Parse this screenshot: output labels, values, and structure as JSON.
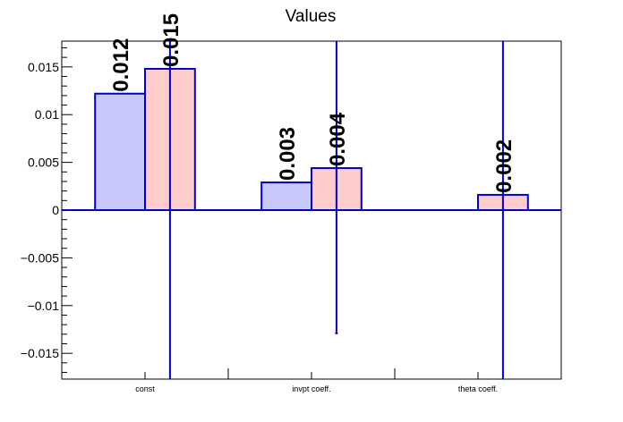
{
  "chart_data": {
    "type": "bar",
    "title": "Values",
    "xlabel": "",
    "ylabel": "",
    "categories": [
      "const",
      "invpt coeff.",
      "theta coeff."
    ],
    "ylim": [
      -0.0177,
      0.0177
    ],
    "yticks": [
      -0.015,
      -0.01,
      -0.005,
      0,
      0.005,
      0.01,
      0.015
    ],
    "ytick_labels": [
      "−0.015",
      "−0.01",
      "−0.005",
      "0",
      "0.005",
      "0.01",
      "0.015"
    ],
    "grid": false,
    "series": [
      {
        "color": "#c8c8fa",
        "edge": "#0000cc",
        "values": [
          0.0122,
          0.0029,
          0
        ],
        "labels": [
          "0.012",
          "0.003",
          ""
        ],
        "err_low": [
          null,
          null,
          null
        ],
        "err_high": [
          null,
          null,
          null
        ]
      },
      {
        "color": "#ffcccc",
        "edge": "#0000cc",
        "values": [
          0.0148,
          0.0044,
          0.0016
        ],
        "labels": [
          "0.015",
          "0.004",
          "0.002"
        ],
        "err_low": [
          -0.0177,
          -0.0129,
          -0.0177
        ],
        "err_high": [
          0.0177,
          0.0177,
          0.0177
        ]
      }
    ]
  }
}
